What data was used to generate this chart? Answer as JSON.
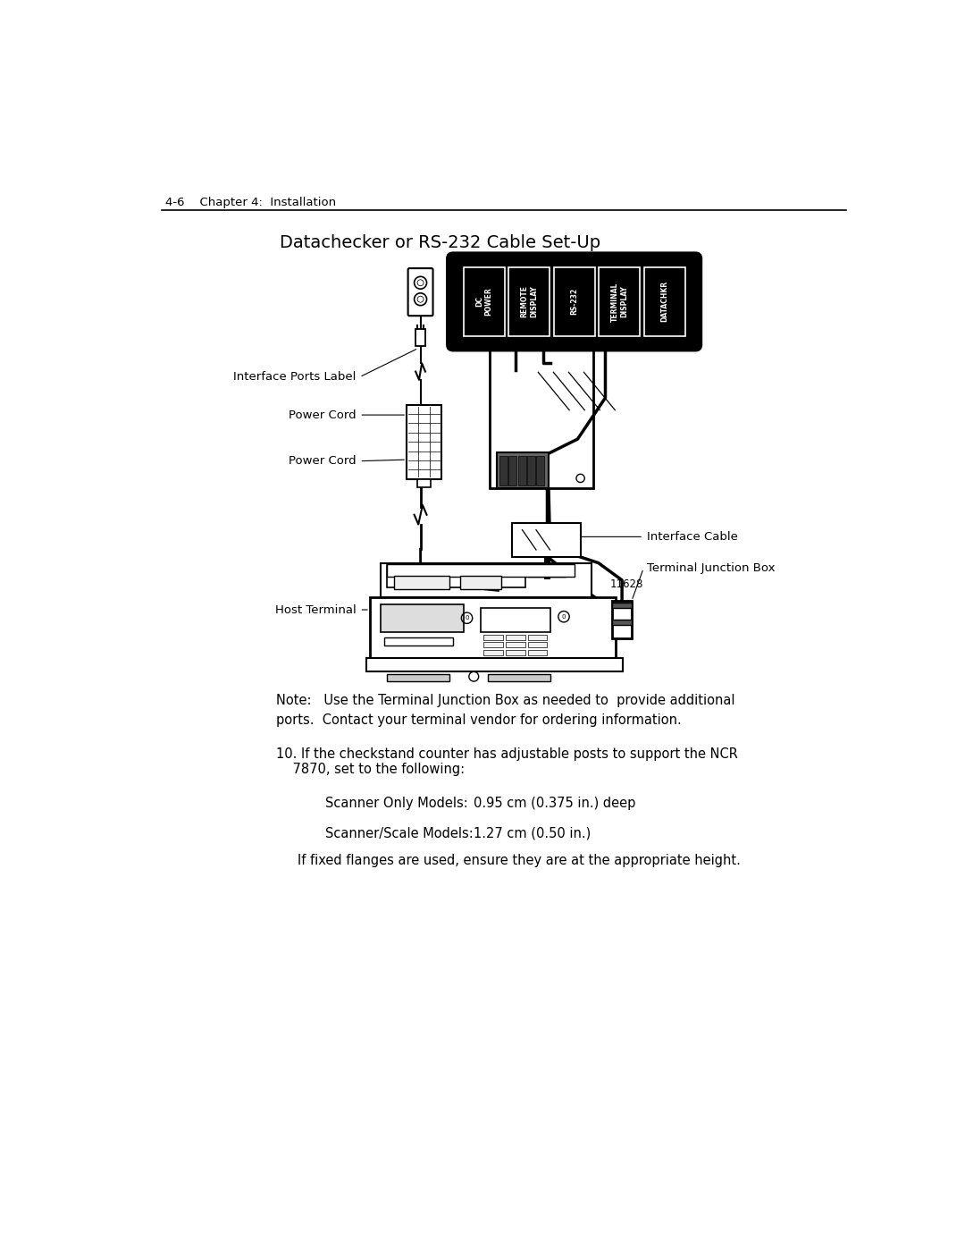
{
  "page_header": "4-6    Chapter 4:  Installation",
  "diagram_title": "Datachecker or RS-232 Cable Set-Up",
  "figure_number": "11628",
  "note_text": "Note:   Use the Terminal Junction Box as needed to  provide additional\nports.  Contact your terminal vendor for ordering information.",
  "item10_line1": "10. If the checkstand counter has adjustable posts to support the NCR",
  "item10_line2": "    7870, set to the following:",
  "scanner_only_label": "Scanner Only Models:",
  "scanner_only_value": "0.95 cm (0.375 in.) deep",
  "scanner_scale_label": "Scanner/Scale Models:",
  "scanner_scale_value": "1.27 cm (0.50 in.)",
  "flanges_text": "If fixed flanges are used, ensure they are at the appropriate height.",
  "label_interface_ports": "Interface Ports Label",
  "label_power_cord_1": "Power Cord",
  "label_power_cord_2": "Power Cord",
  "label_interface_cable": "Interface Cable",
  "label_terminal_junction_box": "Terminal Junction Box",
  "label_host_terminal": "Host Terminal",
  "port_labels": [
    "DC\nPOWER",
    "REMOTE\nDISPLAY",
    "RS-232",
    "TERMINAL\nDISPLAY",
    "DATACHKR"
  ],
  "bg_color": "#ffffff"
}
